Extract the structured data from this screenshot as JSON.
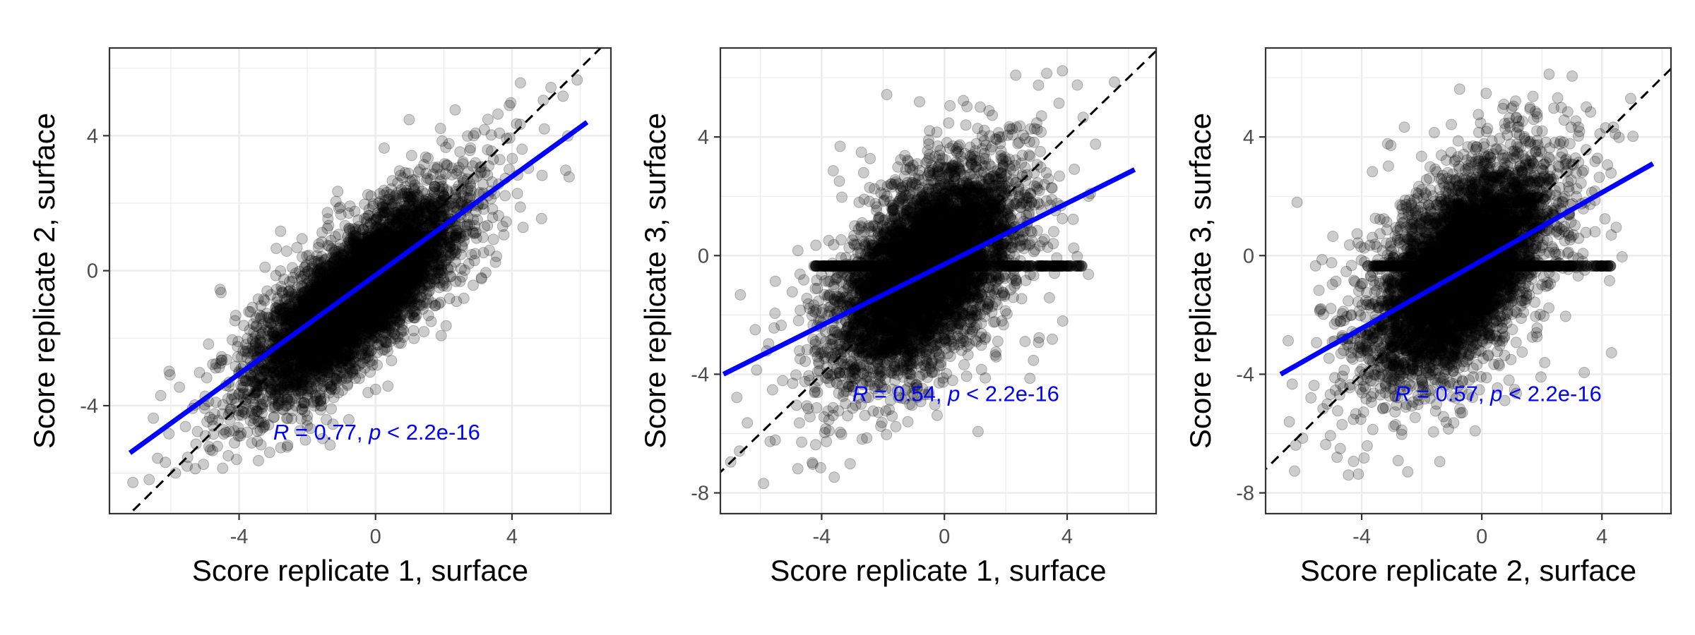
{
  "chart_data": [
    {
      "type": "scatter",
      "xlabel": "Score replicate 1, surface",
      "ylabel": "Score replicate 2, surface",
      "xlim": [
        -7.8,
        6.9
      ],
      "ylim": [
        -7.2,
        6.6
      ],
      "xticks": [
        -4,
        0,
        4
      ],
      "xtick_labels": [
        "-4",
        "0",
        "4"
      ],
      "yticks": [
        -4,
        0,
        4
      ],
      "ytick_labels": [
        "-4",
        "0",
        "4"
      ],
      "grid": true,
      "identity_line": {
        "style": "dashed",
        "color": "#000000"
      },
      "regression_line": {
        "color": "#0000ff",
        "x": [
          -7.2,
          6.2
        ],
        "y": [
          -5.4,
          4.4
        ]
      },
      "annotation": {
        "r_symbol": "R",
        "r_value": "0.77",
        "p_symbol": "p",
        "p_text": "< 2.2e-16",
        "color": "#0000ff",
        "x": -3.0,
        "y": -5.0
      },
      "point_color": "#000000",
      "point_alpha": 0.2,
      "points": {
        "n": 6000,
        "x_center": -0.6,
        "x_sd": 1.45,
        "y_center": -0.8,
        "y_sd": 1.45,
        "correlation": 0.77,
        "x_range": [
          -7.2,
          6.2
        ],
        "y_range": [
          -6.6,
          6.0
        ]
      }
    },
    {
      "type": "scatter",
      "xlabel": "Score replicate 1, surface",
      "ylabel": "Score replicate 3, surface",
      "xlim": [
        -7.3,
        6.9
      ],
      "ylim": [
        -8.7,
        7.0
      ],
      "xticks": [
        -4,
        0,
        4
      ],
      "xtick_labels": [
        "-4",
        "0",
        "4"
      ],
      "yticks": [
        -8,
        -4,
        0,
        4
      ],
      "ytick_labels": [
        "-8",
        "-4",
        "0",
        "4"
      ],
      "grid": true,
      "identity_line": {
        "style": "dashed",
        "color": "#000000"
      },
      "regression_line": {
        "color": "#0000ff",
        "x": [
          -7.2,
          6.2
        ],
        "y": [
          -4.0,
          2.9
        ]
      },
      "annotation": {
        "r_symbol": "R",
        "r_value": "0.54",
        "p_symbol": "p",
        "p_text": "< 2.2e-16",
        "color": "#0000ff",
        "x": -3.0,
        "y": -4.9
      },
      "point_color": "#000000",
      "point_alpha": 0.2,
      "points": {
        "n": 6000,
        "x_center": -0.6,
        "x_sd": 1.45,
        "y_center": -0.5,
        "y_sd": 1.75,
        "correlation": 0.54,
        "x_range": [
          -7.2,
          6.2
        ],
        "y_range": [
          -8.0,
          6.3
        ],
        "band_y": -0.35,
        "band_x_range": [
          -4.3,
          4.5
        ]
      }
    },
    {
      "type": "scatter",
      "xlabel": "Score replicate 2, surface",
      "ylabel": "Score replicate 3, surface",
      "xlim": [
        -7.2,
        6.3
      ],
      "ylim": [
        -8.7,
        7.0
      ],
      "xticks": [
        -4,
        0,
        4
      ],
      "xtick_labels": [
        "-4",
        "0",
        "4"
      ],
      "yticks": [
        -8,
        -4,
        0,
        4
      ],
      "ytick_labels": [
        "-8",
        "-4",
        "0",
        "4"
      ],
      "grid": true,
      "identity_line": {
        "style": "dashed",
        "color": "#000000"
      },
      "regression_line": {
        "color": "#0000ff",
        "x": [
          -6.7,
          5.7
        ],
        "y": [
          -4.0,
          3.1
        ]
      },
      "annotation": {
        "r_symbol": "R",
        "r_value": "0.57",
        "p_symbol": "p",
        "p_text": "< 2.2e-16",
        "color": "#0000ff",
        "x": -2.9,
        "y": -4.9
      },
      "point_color": "#000000",
      "point_alpha": 0.2,
      "points": {
        "n": 6000,
        "x_center": -0.7,
        "x_sd": 1.45,
        "y_center": -0.5,
        "y_sd": 1.75,
        "correlation": 0.57,
        "x_range": [
          -6.6,
          5.8
        ],
        "y_range": [
          -8.0,
          6.3
        ],
        "band_y": -0.35,
        "band_x_range": [
          -3.8,
          4.3
        ]
      }
    }
  ]
}
